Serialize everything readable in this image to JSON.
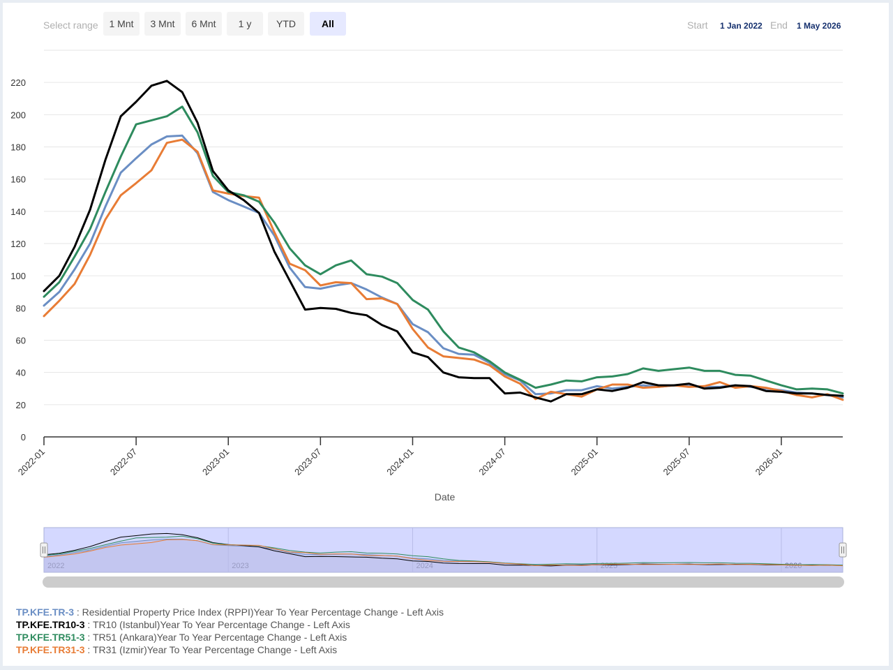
{
  "range_selector": {
    "label": "Select range",
    "buttons": [
      "1 Mnt",
      "3 Mnt",
      "6 Mnt",
      "1 y",
      "YTD",
      "All"
    ],
    "selected": "All",
    "start_label": "Start",
    "start_value": "1 Jan 2022",
    "end_label": "End",
    "end_value": "1 May 2026"
  },
  "legend": [
    {
      "code": "TP.KFE.TR-3",
      "desc": " : Residential Property Price Index (RPPI)Year To Year Percentage Change - Left Axis",
      "color": "#6a8ec4"
    },
    {
      "code": "TP.KFE.TR10-3",
      "desc": " : TR10 (Istanbul)Year To Year Percentage Change - Left Axis",
      "color": "#000000"
    },
    {
      "code": "TP.KFE.TR51-3",
      "desc": " : TR51 (Ankara)Year To Year Percentage Change - Left Axis",
      "color": "#2e8b5e"
    },
    {
      "code": "TP.KFE.TR31-3",
      "desc": " : TR31 (Izmir)Year To Year Percentage Change - Left Axis",
      "color": "#e87c35"
    }
  ],
  "chart_data": {
    "type": "line",
    "title": "",
    "xlabel": "Date",
    "ylabel": "",
    "x_start": "2022-01",
    "x_tick_labels": [
      "2022-01",
      "2022-07",
      "2023-01",
      "2023-07",
      "2024-01",
      "2024-07",
      "2025-01",
      "2025-07",
      "2026-01"
    ],
    "y_ticks": [
      0,
      20,
      40,
      60,
      80,
      100,
      120,
      140,
      160,
      180,
      200,
      220
    ],
    "ylim": [
      0,
      240
    ],
    "grid": true,
    "x": [
      "2022-01",
      "2022-02",
      "2022-03",
      "2022-04",
      "2022-05",
      "2022-06",
      "2022-07",
      "2022-08",
      "2022-09",
      "2022-10",
      "2022-11",
      "2022-12",
      "2023-01",
      "2023-02",
      "2023-03",
      "2023-04",
      "2023-05",
      "2023-06",
      "2023-07",
      "2023-08",
      "2023-09",
      "2023-10",
      "2023-11",
      "2023-12",
      "2024-01",
      "2024-02",
      "2024-03",
      "2024-04",
      "2024-05",
      "2024-06",
      "2024-07",
      "2024-08",
      "2024-09",
      "2024-10",
      "2024-11",
      "2024-12",
      "2025-01",
      "2025-02",
      "2025-03",
      "2025-04",
      "2025-05",
      "2025-06",
      "2025-07",
      "2025-08",
      "2025-09",
      "2025-10",
      "2025-11",
      "2025-12",
      "2026-01",
      "2026-02",
      "2026-03",
      "2026-04",
      "2026-05"
    ],
    "series": [
      {
        "name": "TP.KFE.TR-3",
        "color": "#6a8ec4",
        "values": [
          81.5,
          90,
          104,
          120,
          143,
          164,
          173,
          181.5,
          186.5,
          187,
          176,
          152,
          147,
          143,
          139,
          125,
          105,
          93,
          92,
          94,
          95.5,
          91.5,
          86.5,
          82.5,
          70,
          65,
          55,
          51.5,
          51,
          46,
          39,
          35,
          26.5,
          27,
          29,
          29,
          31.5,
          30,
          31,
          32,
          31,
          32,
          31.5,
          31,
          31,
          32,
          31,
          30,
          29,
          27.5,
          27,
          26,
          24.5
        ]
      },
      {
        "name": "TP.KFE.TR10-3",
        "color": "#000000",
        "values": [
          90.5,
          100,
          118,
          141,
          172,
          199,
          208,
          218,
          221,
          214,
          195,
          165,
          153,
          147,
          139,
          115,
          97,
          79,
          80,
          79.5,
          77,
          75.5,
          69.5,
          65.5,
          52.5,
          49.5,
          40,
          37,
          36.5,
          36.5,
          27,
          27.5,
          24.5,
          22,
          26.5,
          26.5,
          29.5,
          28.5,
          30.5,
          34,
          32,
          32,
          33,
          30,
          30.5,
          32,
          31.5,
          28.5,
          28,
          27,
          27,
          26,
          25.5
        ]
      },
      {
        "name": "TP.KFE.TR51-3",
        "color": "#2e8b5e",
        "values": [
          87,
          96,
          112,
          129,
          152,
          174,
          194,
          196.5,
          199,
          205,
          189,
          162,
          152,
          150,
          146,
          133,
          117,
          106.5,
          101,
          106.5,
          109.5,
          101,
          99.5,
          95.5,
          85,
          79,
          65.5,
          55.5,
          52.5,
          47,
          40,
          35.5,
          30.5,
          32.5,
          35,
          34.5,
          37,
          37.5,
          39,
          42.5,
          41,
          42,
          43,
          41,
          41,
          38.5,
          38,
          35,
          32,
          29.5,
          30,
          29.5,
          27
        ]
      },
      {
        "name": "TP.KFE.TR31-3",
        "color": "#e87c35",
        "values": [
          75,
          84.5,
          95,
          113,
          135,
          150,
          157.5,
          165.5,
          182.5,
          184.5,
          177,
          153,
          151,
          149.5,
          148.5,
          127,
          107.5,
          103.5,
          94,
          96,
          95.5,
          85.5,
          86,
          82.5,
          67,
          55.5,
          50,
          49,
          48,
          44.5,
          37.5,
          33,
          23.5,
          28,
          26.5,
          25,
          29.5,
          32.5,
          32.5,
          30.5,
          31,
          32,
          31,
          31.5,
          34,
          30.5,
          31.5,
          30.5,
          28.5,
          26,
          24.5,
          26.5,
          23
        ]
      }
    ],
    "navigator": {
      "year_labels": [
        "2022",
        "2023",
        "2024",
        "2025",
        "2026"
      ]
    }
  }
}
